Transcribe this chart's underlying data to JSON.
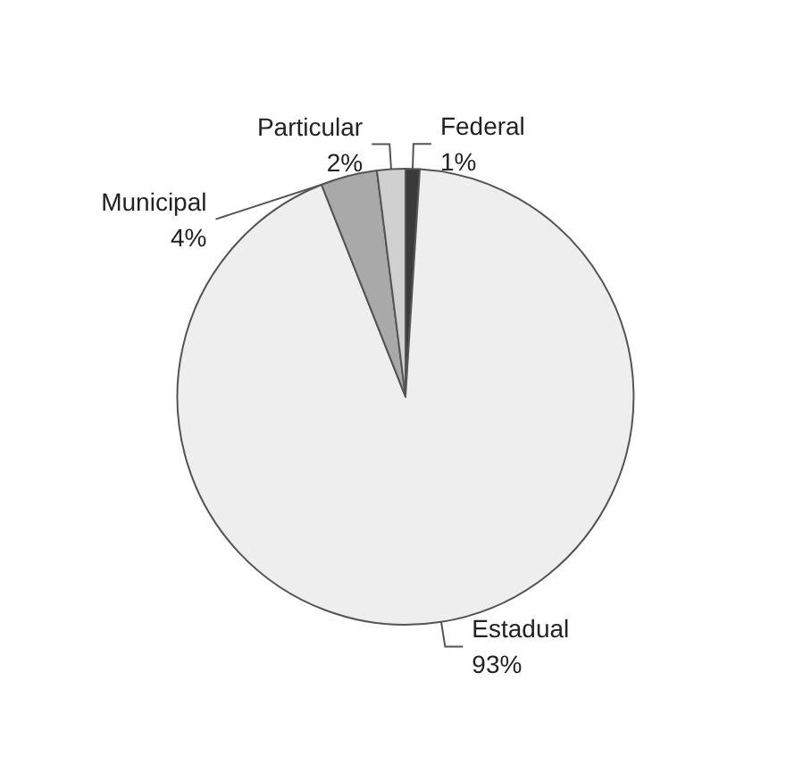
{
  "chart_data": {
    "type": "pie",
    "categories": [
      "Federal",
      "Estadual",
      "Municipal",
      "Particular"
    ],
    "values": [
      1,
      93,
      4,
      2
    ],
    "value_labels": [
      "1%",
      "93%",
      "4%",
      "2%"
    ],
    "colors": [
      "#3a3a3a",
      "#eeeeee",
      "#a9a9a9",
      "#d0d0d0"
    ],
    "legend": false
  }
}
